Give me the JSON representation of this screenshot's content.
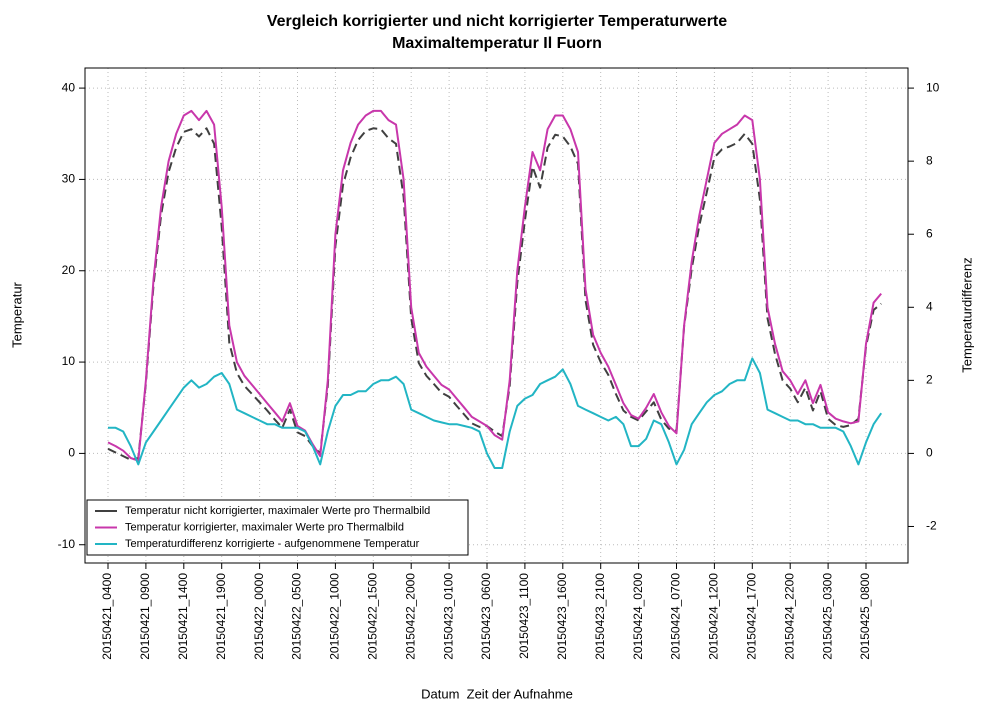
{
  "chart_data": {
    "type": "line",
    "title": "Vergleich korrigierter und nicht korrigierter Temperaturwerte",
    "subtitle": "Maximaltemperatur Il Fuorn",
    "xlabel": "Datum  Zeit der Aufnahme",
    "ylabel": "Temperatur",
    "y2label": "Temperaturdifferenz",
    "categories": [
      "20150421_0400",
      null,
      null,
      null,
      null,
      "20150421_0900",
      null,
      null,
      null,
      null,
      "20150421_1400",
      null,
      null,
      null,
      null,
      "20150421_1900",
      null,
      null,
      null,
      null,
      "20150422_0000",
      null,
      null,
      null,
      null,
      "20150422_0500",
      null,
      null,
      null,
      null,
      "20150422_1000",
      null,
      null,
      null,
      null,
      "20150422_1500",
      null,
      null,
      null,
      null,
      "20150422_2000",
      null,
      null,
      null,
      null,
      "20150423_0100",
      null,
      null,
      null,
      null,
      "20150423_0600",
      null,
      null,
      null,
      null,
      "20150423_1100",
      null,
      null,
      null,
      null,
      "20150423_1600",
      null,
      null,
      null,
      null,
      "20150423_2100",
      null,
      null,
      null,
      null,
      "20150424_0200",
      null,
      null,
      null,
      null,
      "20150424_0700",
      null,
      null,
      null,
      null,
      "20150424_1200",
      null,
      null,
      null,
      null,
      "20150424_1700",
      null,
      null,
      null,
      null,
      "20150424_2200",
      null,
      null,
      null,
      null,
      "20150425_0300",
      null,
      null,
      null,
      null,
      "20150425_0800",
      null,
      null
    ],
    "series": [
      {
        "name": "Temperatur nicht korrigierter, maximaler Werte pro Thermalbild",
        "color": "#404040",
        "linestyle": "dashed",
        "values": [
          0.5,
          0.1,
          -0.3,
          -0.7,
          -0.5,
          7.7,
          18.4,
          26.1,
          30.8,
          33.5,
          35.2,
          35.5,
          34.7,
          35.6,
          33.9,
          24.8,
          12.1,
          8.8,
          7.4,
          6.5,
          5.6,
          4.7,
          3.7,
          2.8,
          4.8,
          2.3,
          1.9,
          0.8,
          0,
          7.4,
          22.7,
          29.4,
          32.4,
          34.3,
          35.3,
          35.6,
          35.5,
          34.5,
          33.9,
          28.1,
          14.8,
          9.9,
          8.5,
          7.6,
          6.65,
          6.2,
          5.2,
          4.25,
          3.3,
          2.9,
          3,
          2.4,
          1.9,
          7.4,
          18.7,
          25.5,
          31.4,
          29.1,
          33.5,
          34.9,
          34.7,
          33.6,
          31.7,
          16.8,
          11.9,
          10,
          8.6,
          6.5,
          4.7,
          4,
          3.6,
          4.6,
          5.6,
          3.7,
          2.7,
          2.5,
          13.9,
          20.2,
          24.9,
          28.6,
          32.4,
          33.3,
          33.6,
          34,
          35,
          33.9,
          27.8,
          14.8,
          10.9,
          8,
          7.1,
          5.6,
          7.2,
          4.7,
          6.8,
          3.8,
          3.1,
          2.9,
          3.1,
          3.8,
          11.7,
          15.7,
          16.4
        ]
      },
      {
        "name": "Temperatur korrigierter, maximaler Werte pro Thermalbild",
        "color": "#c837ab",
        "linestyle": "solid",
        "values": [
          1.2,
          0.8,
          0.3,
          -0.5,
          -0.8,
          8,
          19,
          27,
          32,
          35,
          37,
          37.5,
          36.5,
          37.5,
          36,
          27,
          14,
          10,
          8.5,
          7.5,
          6.5,
          5.5,
          4.5,
          3.5,
          5.5,
          3,
          2.5,
          1,
          -0.3,
          8,
          24,
          31,
          34,
          36,
          37,
          37.5,
          37.5,
          36.5,
          36,
          30,
          16,
          11,
          9.5,
          8.5,
          7.5,
          7,
          6,
          5,
          4,
          3.5,
          3,
          2,
          1.5,
          8,
          20,
          27,
          33,
          31,
          35.5,
          37,
          37,
          35.5,
          33,
          18,
          13,
          11,
          9.5,
          7.5,
          5.5,
          4.2,
          3.8,
          5,
          6.5,
          4.5,
          3,
          2.2,
          14,
          21,
          26,
          30,
          34,
          35,
          35.5,
          36,
          37,
          36.5,
          30,
          16,
          12,
          9,
          8,
          6.5,
          8,
          5.5,
          7.5,
          4.5,
          3.8,
          3.5,
          3.3,
          3.5,
          12,
          16.5,
          17.5
        ]
      },
      {
        "name": "Temperaturdifferenz korrigierte - aufgenommene Temperatur",
        "color": "#22b5c4",
        "linestyle": "solid",
        "axis": "y2",
        "values": [
          0.7,
          0.7,
          0.6,
          0.2,
          -0.3,
          0.3,
          0.6,
          0.9,
          1.2,
          1.5,
          1.8,
          2.0,
          1.8,
          1.9,
          2.1,
          2.2,
          1.9,
          1.2,
          1.1,
          1.0,
          0.9,
          0.8,
          0.8,
          0.7,
          0.7,
          0.7,
          0.6,
          0.2,
          -0.3,
          0.6,
          1.3,
          1.6,
          1.6,
          1.7,
          1.7,
          1.9,
          2.0,
          2.0,
          2.1,
          1.9,
          1.2,
          1.1,
          1.0,
          0.9,
          0.85,
          0.8,
          0.8,
          0.75,
          0.7,
          0.6,
          0,
          -0.4,
          -0.4,
          0.6,
          1.3,
          1.5,
          1.6,
          1.9,
          2.0,
          2.1,
          2.3,
          1.9,
          1.3,
          1.2,
          1.1,
          1.0,
          0.9,
          1.0,
          0.8,
          0.2,
          0.2,
          0.4,
          0.9,
          0.8,
          0.3,
          -0.3,
          0.1,
          0.8,
          1.1,
          1.4,
          1.6,
          1.7,
          1.9,
          2.0,
          2.0,
          2.6,
          2.2,
          1.2,
          1.1,
          1.0,
          0.9,
          0.9,
          0.8,
          0.8,
          0.7,
          0.7,
          0.7,
          0.6,
          0.2,
          -0.3,
          0.3,
          0.8,
          1.1
        ]
      }
    ],
    "ylim": [
      -12,
      42.2
    ],
    "yticks": [
      -10,
      0,
      10,
      20,
      30,
      40
    ],
    "y2lim": [
      -3,
      10.55
    ],
    "y2ticks": [
      -2,
      0,
      2,
      4,
      6,
      8,
      10
    ],
    "grid": true,
    "legend": "bottomleft"
  }
}
